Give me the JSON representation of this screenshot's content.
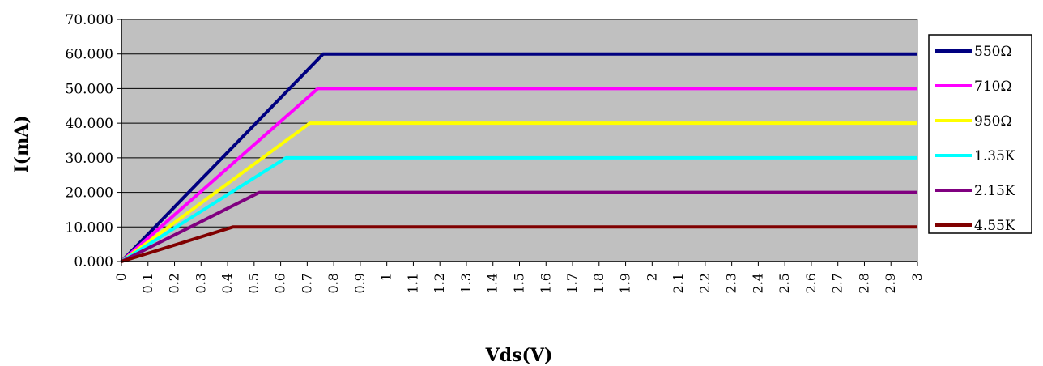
{
  "chart_data": {
    "type": "line",
    "title": "",
    "xlabel": "Vds(V)",
    "ylabel": "I(mA)",
    "xlim": [
      0,
      3
    ],
    "ylim": [
      0,
      70
    ],
    "y_ticks": [
      "0.000",
      "10.000",
      "20.000",
      "30.000",
      "40.000",
      "50.000",
      "60.000",
      "70.000"
    ],
    "x_ticks": [
      {
        "v": 0,
        "label": "0"
      },
      {
        "v": 0.1,
        "label": "0.1"
      },
      {
        "v": 0.2,
        "label": "0.2"
      },
      {
        "v": 0.3,
        "label": "0.3"
      },
      {
        "v": 0.4,
        "label": "0.4"
      },
      {
        "v": 0.5,
        "label": "0.5"
      },
      {
        "v": 0.6,
        "label": "0.6"
      },
      {
        "v": 0.7,
        "label": "0.7"
      },
      {
        "v": 0.8,
        "label": "0.8"
      },
      {
        "v": 0.9,
        "label": "0.9"
      },
      {
        "v": 1.0,
        "label": "1"
      },
      {
        "v": 1.1,
        "label": "1.1"
      },
      {
        "v": 1.2,
        "label": "1.2"
      },
      {
        "v": 1.3,
        "label": "1.3"
      },
      {
        "v": 1.4,
        "label": "1.4"
      },
      {
        "v": 1.5,
        "label": "1.5"
      },
      {
        "v": 1.6,
        "label": "1.6"
      },
      {
        "v": 1.7,
        "label": "1.7"
      },
      {
        "v": 1.8,
        "label": "1.8"
      },
      {
        "v": 1.9,
        "label": "1.9"
      },
      {
        "v": 2.0,
        "label": "2"
      },
      {
        "v": 2.1,
        "label": "2.1"
      },
      {
        "v": 2.2,
        "label": "2.2"
      },
      {
        "v": 2.3,
        "label": "2.3"
      },
      {
        "v": 2.4,
        "label": "2.4"
      },
      {
        "v": 2.5,
        "label": "2.5"
      },
      {
        "v": 2.6,
        "label": "2.6"
      },
      {
        "v": 2.7,
        "label": "2.7"
      },
      {
        "v": 2.8,
        "label": "2.8"
      },
      {
        "v": 2.9,
        "label": "2.9"
      },
      {
        "v": 3.0,
        "label": "3"
      }
    ],
    "grid": {
      "horizontal": true,
      "vertical": false
    },
    "plot_background": "#c0c0c0",
    "legend_position": "right",
    "series": [
      {
        "name": "550Ω",
        "color": "#000080",
        "points": [
          [
            0,
            0
          ],
          [
            0.76,
            60
          ],
          [
            3.0,
            60
          ]
        ]
      },
      {
        "name": "710Ω",
        "color": "#ff00ff",
        "points": [
          [
            0,
            0
          ],
          [
            0.74,
            50
          ],
          [
            3.0,
            50
          ]
        ]
      },
      {
        "name": "950Ω",
        "color": "#ffff00",
        "points": [
          [
            0,
            0
          ],
          [
            0.71,
            40
          ],
          [
            3.0,
            40
          ]
        ]
      },
      {
        "name": "1.35K",
        "color": "#00ffff",
        "points": [
          [
            0,
            0
          ],
          [
            0.62,
            30
          ],
          [
            3.0,
            30
          ]
        ]
      },
      {
        "name": "2.15K",
        "color": "#800080",
        "points": [
          [
            0,
            0
          ],
          [
            0.52,
            20
          ],
          [
            3.0,
            20
          ]
        ]
      },
      {
        "name": "4.55K",
        "color": "#800000",
        "points": [
          [
            0,
            0
          ],
          [
            0.42,
            10
          ],
          [
            3.0,
            10
          ]
        ]
      }
    ]
  }
}
